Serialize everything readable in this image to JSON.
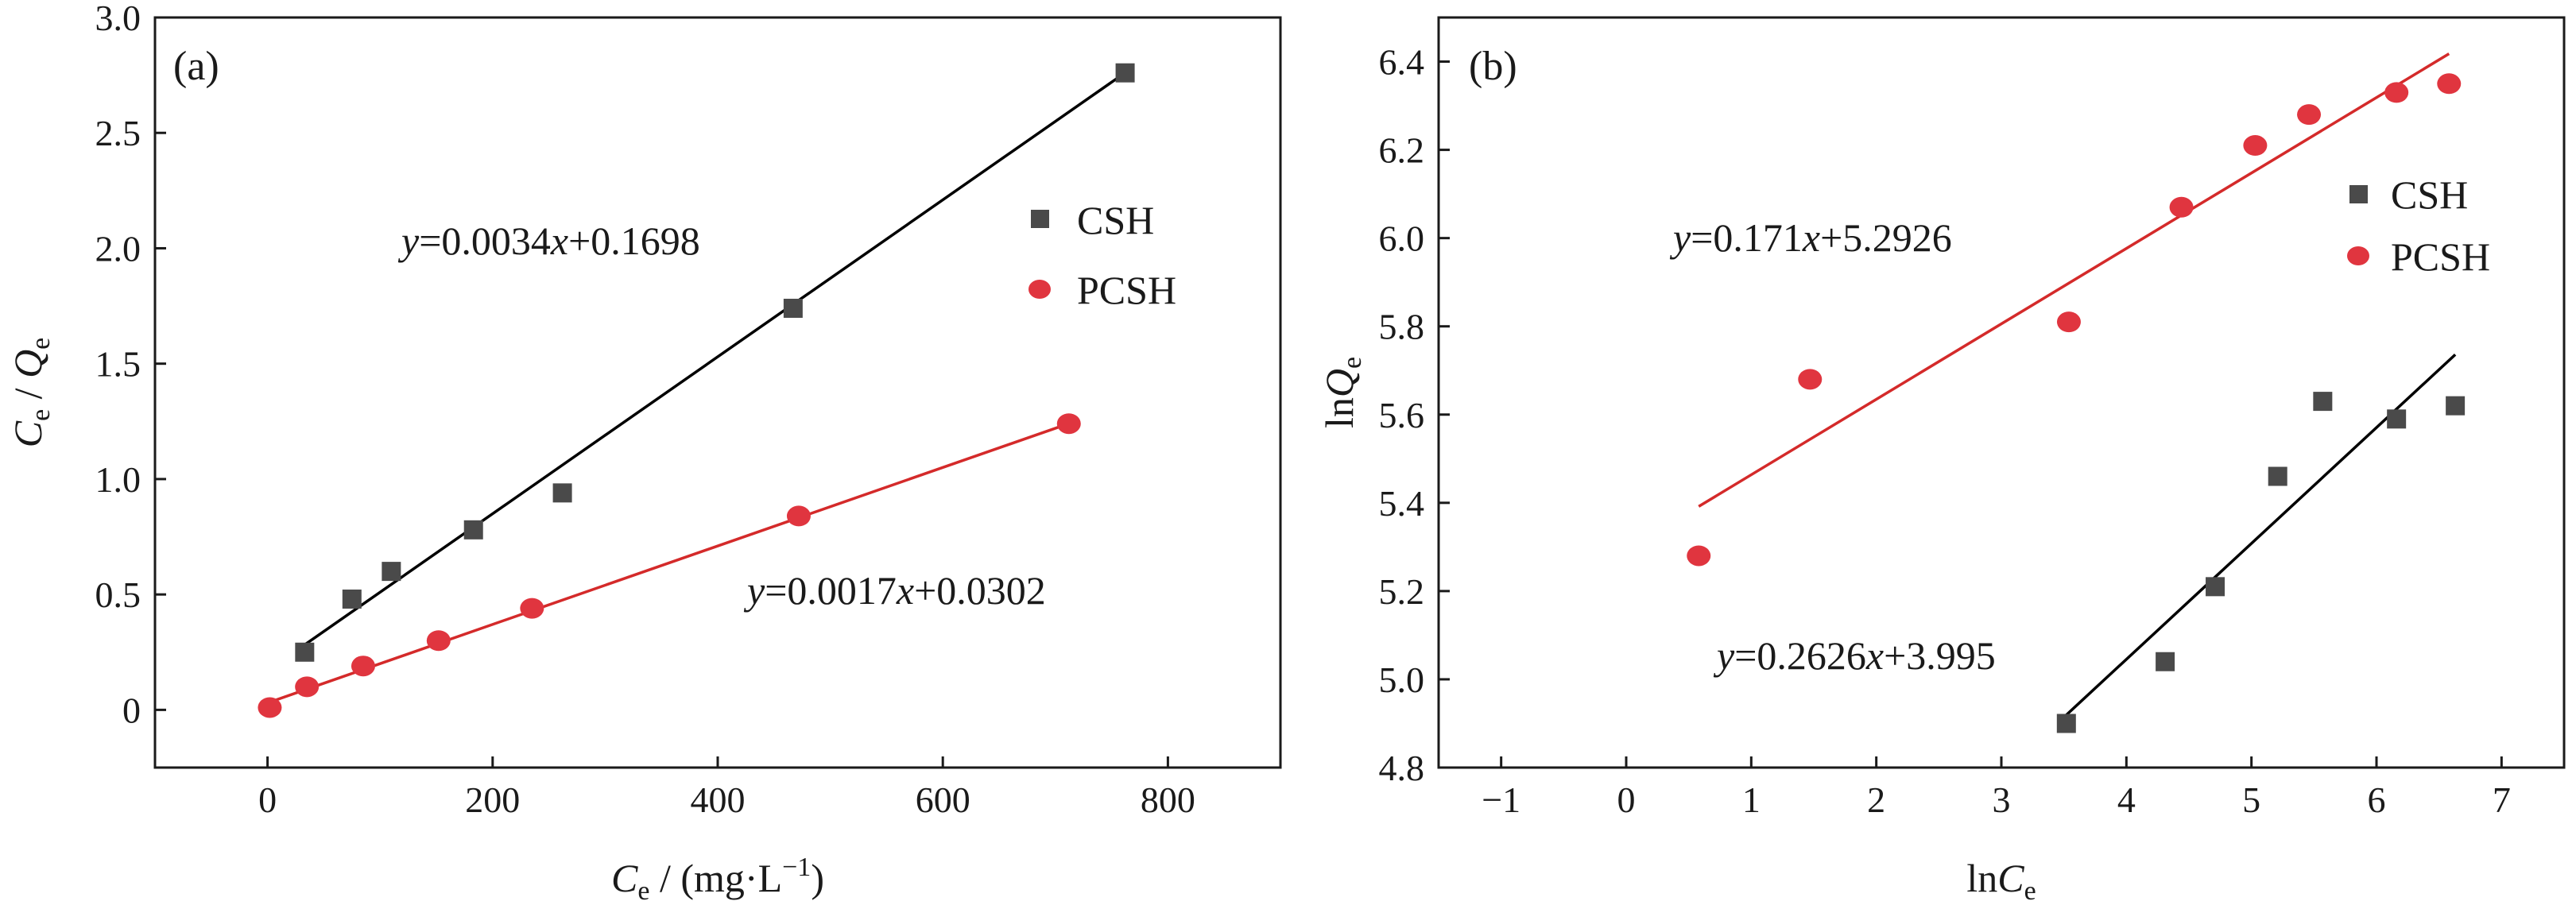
{
  "colors": {
    "CSH": "#4a4a4a",
    "PCSH": "#e0353f",
    "CSH_line": "#000000",
    "PCSH_line": "#d42a2a"
  },
  "chart_data": [
    {
      "type": "scatter",
      "panel_label": "(a)",
      "xlabel": {
        "main": "C",
        "sub": "e",
        "unit": " / (mg·L",
        "sup": "−1",
        "close": ")"
      },
      "ylabel": {
        "c": "C",
        "c_sub": "e",
        "sep": " / ",
        "q": "Q",
        "q_sub": "e"
      },
      "xlim": [
        -100,
        900
      ],
      "ylim": [
        -0.25,
        3.0
      ],
      "xticks": [
        0,
        200,
        400,
        600,
        800
      ],
      "yticks": [
        0,
        0.5,
        1.0,
        1.5,
        2.0,
        2.5,
        3.0
      ],
      "xtick_labels": [
        "0",
        "200",
        "400",
        "600",
        "800"
      ],
      "ytick_labels": [
        "0",
        "0.5",
        "1.0",
        "1.5",
        "2.0",
        "2.5",
        "3.0"
      ],
      "legend_position": "upper-right",
      "series": [
        {
          "name": "CSH",
          "marker": "square",
          "x": [
            33,
            75,
            110,
            183,
            262,
            467,
            762
          ],
          "y": [
            0.25,
            0.48,
            0.6,
            0.78,
            0.94,
            1.74,
            2.76
          ],
          "fit": {
            "slope": 0.0034,
            "intercept": 0.1698,
            "x_range": [
              33,
              762
            ]
          },
          "equation": {
            "y": "y",
            "mid1": "=0.0034",
            "x": "x",
            "mid2": "+0.1698"
          }
        },
        {
          "name": "PCSH",
          "marker": "circle",
          "x": [
            2,
            35,
            85,
            152,
            235,
            472,
            712
          ],
          "y": [
            0.01,
            0.1,
            0.19,
            0.3,
            0.44,
            0.84,
            1.24
          ],
          "fit": {
            "slope": 0.0017,
            "intercept": 0.0302,
            "x_range": [
              2,
              712
            ]
          },
          "equation": {
            "y": "y",
            "mid1": "=0.0017",
            "x": "x",
            "mid2": "+0.0302"
          }
        }
      ]
    },
    {
      "type": "scatter",
      "panel_label": "(b)",
      "xlabel": {
        "main": "ln",
        "var": "C",
        "sub": "e"
      },
      "ylabel": {
        "main": "ln",
        "var": "Q",
        "sub": "e"
      },
      "xlim": [
        -1.5,
        7.5
      ],
      "ylim": [
        4.8,
        6.5
      ],
      "xticks": [
        -1,
        0,
        1,
        2,
        3,
        4,
        5,
        6,
        7
      ],
      "yticks": [
        4.8,
        5.0,
        5.2,
        5.4,
        5.6,
        5.8,
        6.0,
        6.2,
        6.4
      ],
      "xtick_labels": [
        "−1",
        "0",
        "1",
        "2",
        "3",
        "4",
        "5",
        "6",
        "7"
      ],
      "ytick_labels": [
        "4.8",
        "5.0",
        "5.2",
        "5.4",
        "5.6",
        "5.8",
        "6.0",
        "6.2",
        "6.4"
      ],
      "legend_position": "upper-right",
      "series": [
        {
          "name": "CSH",
          "marker": "square",
          "x": [
            3.52,
            4.31,
            4.71,
            5.21,
            5.57,
            6.16,
            6.63
          ],
          "y": [
            4.9,
            5.04,
            5.21,
            5.46,
            5.63,
            5.59,
            5.62
          ],
          "fit": {
            "slope": 0.2626,
            "intercept": 3.995,
            "x_range": [
              3.52,
              6.63
            ]
          },
          "equation": {
            "y": "y",
            "mid1": "=0.2626",
            "x": "x",
            "mid2": "+3.995"
          }
        },
        {
          "name": "PCSH",
          "marker": "circle",
          "x": [
            0.58,
            1.47,
            3.54,
            4.44,
            5.03,
            5.46,
            6.16,
            6.58
          ],
          "y": [
            5.28,
            5.68,
            5.81,
            6.07,
            6.21,
            6.28,
            6.33,
            6.35
          ],
          "fit": {
            "slope": 0.171,
            "intercept": 5.2926,
            "x_range": [
              0.58,
              6.58
            ]
          },
          "equation": {
            "y": "y",
            "mid1": "=0.171",
            "x": "x",
            "mid2": "+5.2926"
          }
        }
      ]
    }
  ]
}
